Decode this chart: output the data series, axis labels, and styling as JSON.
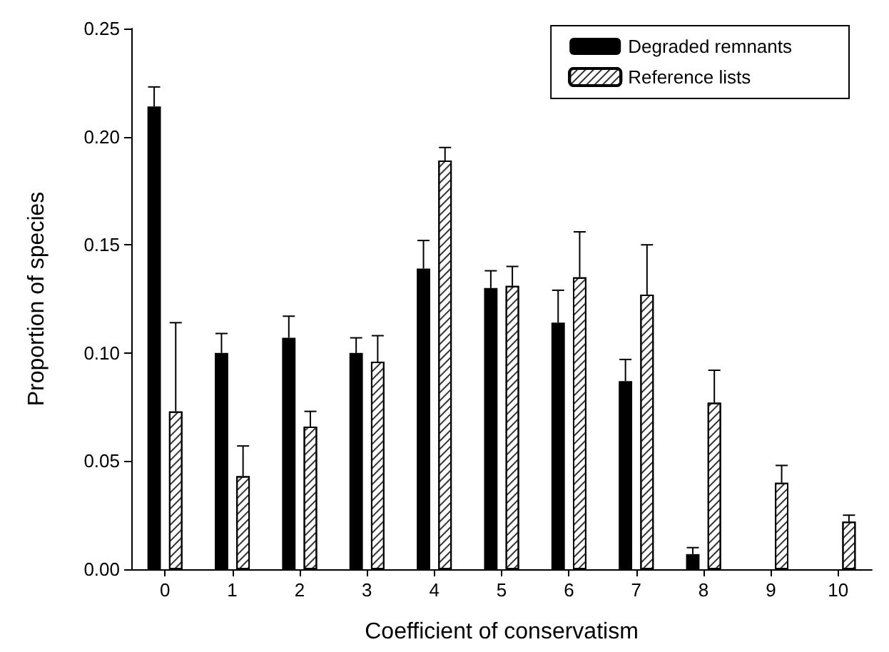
{
  "chart_data": {
    "type": "bar",
    "xlabel": "Coefficient of conservatism",
    "ylabel": "Proportion of species",
    "categories": [
      "0",
      "1",
      "2",
      "3",
      "4",
      "5",
      "6",
      "7",
      "8",
      "9",
      "10"
    ],
    "series": [
      {
        "name": "Degraded remnants",
        "color": "#000000",
        "values": [
          0.214,
          0.1,
          0.107,
          0.1,
          0.139,
          0.13,
          0.114,
          0.087,
          0.007,
          null,
          null
        ],
        "errors": [
          [
            0.214,
            0.223
          ],
          [
            0.1,
            0.109
          ],
          [
            0.107,
            0.117
          ],
          [
            0.1,
            0.107
          ],
          [
            0.139,
            0.152
          ],
          [
            0.13,
            0.138
          ],
          [
            0.114,
            0.129
          ],
          [
            0.087,
            0.097
          ],
          [
            0.007,
            0.01
          ],
          null,
          null
        ]
      },
      {
        "name": "Reference lists",
        "color": "#ffffff",
        "values": [
          0.073,
          0.043,
          0.066,
          0.096,
          0.189,
          0.131,
          0.135,
          0.127,
          0.077,
          0.04,
          0.022
        ],
        "errors": [
          [
            0.073,
            0.114
          ],
          [
            0.043,
            0.057
          ],
          [
            0.066,
            0.073
          ],
          [
            0.096,
            0.108
          ],
          [
            0.189,
            0.195
          ],
          [
            0.131,
            0.14
          ],
          [
            0.135,
            0.156
          ],
          [
            0.127,
            0.15
          ],
          [
            0.077,
            0.092
          ],
          [
            0.04,
            0.048
          ],
          [
            0.022,
            0.025
          ]
        ]
      }
    ],
    "ylim": [
      0,
      0.25
    ],
    "yticks": [
      {
        "value": 0,
        "label": "0.00"
      },
      {
        "value": 0.05,
        "label": "0.05"
      },
      {
        "value": 0.1,
        "label": "0.10"
      },
      {
        "value": 0.15,
        "label": "0.15"
      },
      {
        "value": 0.2,
        "label": "0.20"
      },
      {
        "value": 0.25,
        "label": "0.25"
      }
    ],
    "grid": false,
    "legend": "top right"
  }
}
